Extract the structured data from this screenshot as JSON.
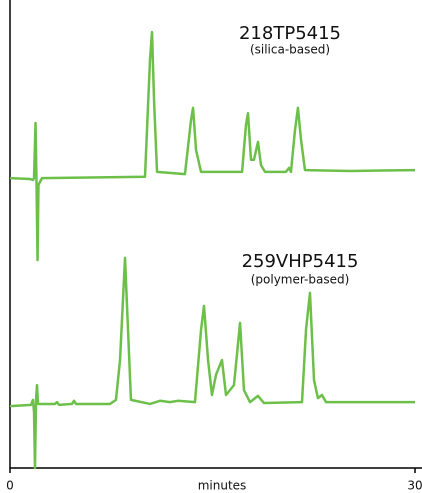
{
  "chart_data": {
    "type": "line",
    "x_label": "minutes",
    "xlim": [
      0,
      30
    ],
    "xticks": [
      0,
      30
    ],
    "ylim": [
      0,
      100
    ],
    "series": [
      {
        "name": "218TP5415",
        "note": "(silica-based)",
        "color": "#6cc04a",
        "x": [
          0,
          1.48,
          1.7,
          1.78,
          1.89,
          1.96,
          2.04,
          2.11,
          2.37,
          10.0,
          10.37,
          10.52,
          10.67,
          10.89,
          12.96,
          13.41,
          13.56,
          13.78,
          14.15,
          17.19,
          17.48,
          17.63,
          17.85,
          18.07,
          18.37,
          18.59,
          18.89,
          20.44,
          20.67,
          20.81,
          21.11,
          21.33,
          21.56,
          21.85,
          25.19,
          30
        ],
        "values": [
          64.7,
          64.5,
          64.3,
          64.7,
          77.0,
          64.7,
          46.4,
          63.2,
          64.7,
          65.0,
          91.1,
          97.3,
          82.1,
          66.1,
          65.6,
          77.7,
          80.4,
          71.0,
          66.1,
          66.1,
          76.6,
          79.2,
          68.8,
          68.8,
          72.8,
          67.6,
          66.1,
          66.1,
          67.0,
          66.1,
          75.4,
          80.4,
          73.2,
          66.5,
          66.3,
          66.5
        ]
      },
      {
        "name": "259VHP5415",
        "note": "(polymer-based)",
        "color": "#6cc04a",
        "x": [
          0,
          1.56,
          1.7,
          1.78,
          1.85,
          1.93,
          2.0,
          2.07,
          3.33,
          3.48,
          3.63,
          4.59,
          4.74,
          4.89,
          7.41,
          7.85,
          8.15,
          8.52,
          8.74,
          8.96,
          10.37,
          11.11,
          11.85,
          12.44,
          13.7,
          14.15,
          14.37,
          14.67,
          14.96,
          15.26,
          15.7,
          16.0,
          16.59,
          17.04,
          17.33,
          17.78,
          18.37,
          18.81,
          21.63,
          21.93,
          22.22,
          22.52,
          22.81,
          23.11,
          23.41,
          30
        ],
        "values": [
          13.8,
          14.1,
          15.2,
          12.5,
          0,
          15.2,
          18.5,
          14.3,
          14.3,
          14.7,
          14.1,
          14.3,
          15.0,
          14.3,
          14.3,
          15.2,
          24.1,
          46.9,
          31.0,
          15.2,
          14.3,
          15.0,
          14.7,
          15.0,
          14.7,
          30.8,
          36.2,
          24.1,
          16.3,
          20.8,
          24.1,
          16.3,
          18.5,
          32.4,
          17.4,
          14.7,
          16.1,
          14.5,
          14.7,
          31.0,
          39.1,
          19.6,
          15.6,
          16.3,
          14.7,
          14.7
        ]
      }
    ]
  }
}
